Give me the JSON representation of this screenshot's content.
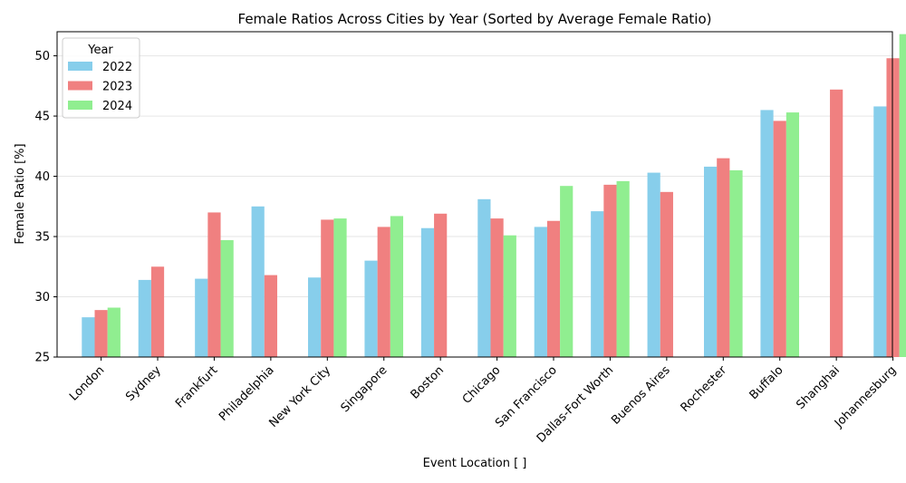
{
  "chart_data": {
    "type": "bar",
    "title": "Female Ratios Across Cities by Year (Sorted by Average Female Ratio)",
    "xlabel": "Event Location [ ]",
    "ylabel": "Female Ratio [%]",
    "ylim": [
      25,
      52
    ],
    "yticks": [
      25,
      30,
      35,
      40,
      45,
      50
    ],
    "grid": "horizontal",
    "legend": {
      "title": "Year",
      "placement": "top-left"
    },
    "categories": [
      "London",
      "Sydney",
      "Frankfurt",
      "Philadelphia",
      "New York City",
      "Singapore",
      "Boston",
      "Chicago",
      "San Francisco",
      "Dallas-Fort Worth",
      "Buenos Aires",
      "Rochester",
      "Buffalo",
      "Shanghai",
      "Johannesburg"
    ],
    "series": [
      {
        "name": "2022",
        "color": "#87ceeb",
        "values": [
          28.3,
          31.4,
          31.5,
          37.5,
          31.6,
          33.0,
          35.7,
          38.1,
          35.8,
          37.1,
          40.3,
          40.8,
          45.5,
          null,
          45.8
        ]
      },
      {
        "name": "2023",
        "color": "#f08080",
        "values": [
          28.9,
          32.5,
          37.0,
          31.8,
          36.4,
          35.8,
          36.9,
          36.5,
          36.3,
          39.3,
          38.7,
          41.5,
          44.6,
          47.2,
          49.8
        ]
      },
      {
        "name": "2024",
        "color": "#90ee90",
        "values": [
          29.1,
          null,
          34.7,
          null,
          36.5,
          36.7,
          null,
          35.1,
          39.2,
          39.6,
          null,
          40.5,
          45.3,
          null,
          51.8
        ]
      }
    ]
  }
}
